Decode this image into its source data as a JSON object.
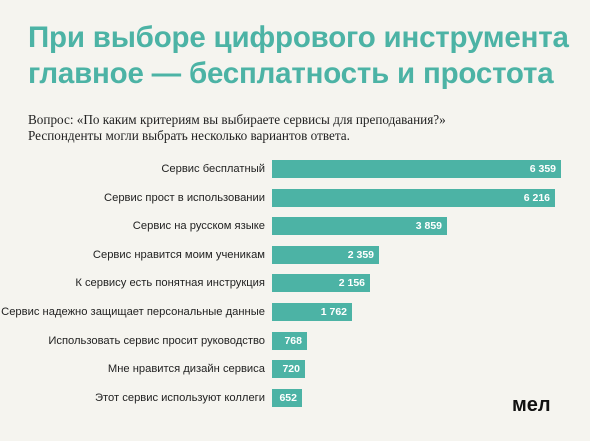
{
  "header": {
    "title_line1": "При выборе цифрового инструмента",
    "title_line2": "главное — бесплатность и простота",
    "subtitle_line1": "Вопрос: «По каким критериям вы выбираете сервисы для преподавания?»",
    "subtitle_line2": "Респонденты могли выбрать несколько вариантов ответа."
  },
  "logo": "мел",
  "colors": {
    "bar": "#4cb3a5",
    "title": "#4cb3a5",
    "background": "#f5f4ef"
  },
  "chart_data": {
    "type": "bar",
    "orientation": "horizontal",
    "categories": [
      "Сервис бесплатный",
      "Сервис прост в использовании",
      "Сервис на русском языке",
      "Сервис нравится моим ученикам",
      "К сервису есть понятная инструкция",
      "Сервис надежно защищает персональные данные",
      "Использовать сервис просит руководство",
      "Мне нравится дизайн сервиса",
      "Этот сервис используют коллеги"
    ],
    "values": [
      6359,
      6216,
      3859,
      2359,
      2156,
      1762,
      768,
      720,
      652
    ],
    "value_labels": [
      "6 359",
      "6 216",
      "3 859",
      "2 359",
      "2 156",
      "1 762",
      "768",
      "720",
      "652"
    ],
    "title": "При выборе цифрового инструмента главное — бесплатность и простота",
    "xlabel": "",
    "ylabel": "",
    "grid": false,
    "legend": "none"
  }
}
